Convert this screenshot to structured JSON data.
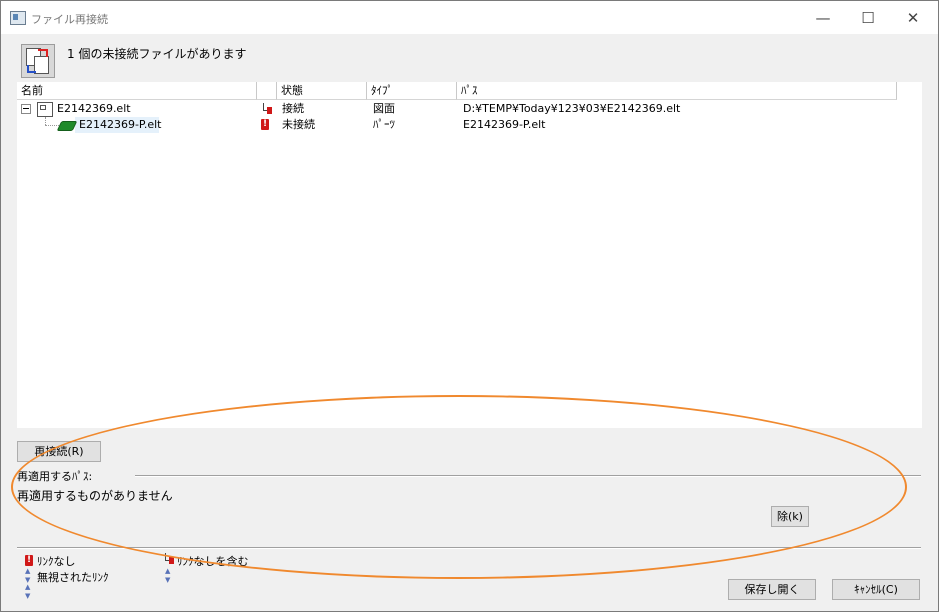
{
  "window": {
    "title": "ファイル再接続",
    "minimize_glyph": "—",
    "maximize_glyph": "☐",
    "close_glyph": "✕"
  },
  "header": {
    "message": "1 個の未接続ファイルがあります",
    "icon": "reconnect-files-icon"
  },
  "list": {
    "columns": [
      "名前",
      "",
      "状態",
      "ﾀｲﾌﾟ",
      "ﾊﾟｽ"
    ],
    "rows": [
      {
        "name": "E2142369.elt",
        "status_icon": "link-with-missing-icon",
        "status": "接続",
        "type": "図面",
        "path": "D:¥TEMP¥Today¥123¥03¥E2142369.elt"
      },
      {
        "name": "E2142369-P.elt",
        "status_icon": "missing-link-icon",
        "status": "未接続",
        "type": "ﾊﾟｰﾂ",
        "path": "E2142369-P.elt"
      }
    ],
    "error_glyph": "!"
  },
  "actions": {
    "reconnect_button": "再接続(R)",
    "reapply_path_label": "再適用するﾊﾟｽ:",
    "reapply_message": "再適用するものがありません",
    "delete_button": "除(k)"
  },
  "legend": {
    "no_link": "ﾘﾝｸなし",
    "ignored_link": "無視されたﾘﾝｸ",
    "contains_no_link": "ﾘﾝｸなしを含む"
  },
  "footer": {
    "save_open_button": "保存し開く",
    "cancel_button": "ｷｬﾝｾﾙ(C)"
  },
  "colors": {
    "annotation_outline": "#f0892e",
    "error_red": "#d01818",
    "part_green": "#1f8a2a"
  }
}
